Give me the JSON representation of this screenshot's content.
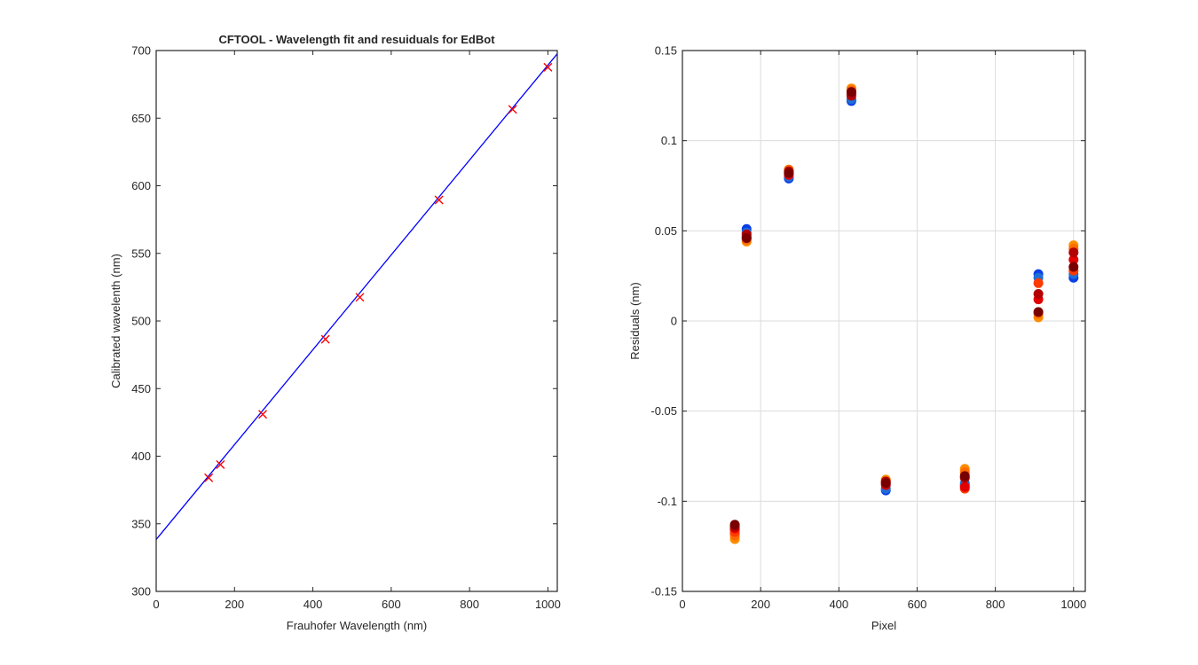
{
  "figure": {
    "background": "#ffffff"
  },
  "chart_data": [
    {
      "type": "line",
      "title": "CFTOOL - Wavelength fit and resuiduals for EdBot",
      "xlabel": "Frauhofer Wavelength (nm)",
      "ylabel": "Calibrated wavelenth (nm)",
      "xlim": [
        0,
        1024
      ],
      "ylim": [
        300,
        700
      ],
      "xticks": [
        0,
        200,
        400,
        600,
        800,
        1000
      ],
      "yticks": [
        300,
        350,
        400,
        450,
        500,
        550,
        600,
        650,
        700
      ],
      "grid": false,
      "legend": "none",
      "series": [
        {
          "type": "line",
          "color": "#0000ff",
          "x": [
            0,
            1024
          ],
          "y": [
            338.4,
            697.6
          ]
        },
        {
          "type": "scatter",
          "marker": "x",
          "color": "#ff0000",
          "x": [
            134,
            164,
            272,
            432,
            520,
            722,
            910,
            1000
          ],
          "y": [
            384,
            393.8,
            431,
            486.5,
            517.5,
            589.5,
            656.5,
            687.6
          ]
        }
      ]
    },
    {
      "type": "scatter",
      "title": "",
      "xlabel": "Pixel",
      "ylabel": "Residuals  (nm)",
      "xlim": [
        0,
        1030
      ],
      "ylim": [
        -0.15,
        0.15
      ],
      "xticks": [
        0,
        200,
        400,
        600,
        800,
        1000
      ],
      "yticks": [
        -0.15,
        -0.1,
        -0.05,
        0,
        0.05,
        0.1,
        0.15
      ],
      "ytick_labels": [
        "-0.15",
        "-0.1",
        "-0.05",
        "0",
        "0.05",
        "0.1",
        "0.15"
      ],
      "grid": true,
      "legend": "none",
      "marker": "filled-circle",
      "colors": [
        "#0a3ee8",
        "#1f6fd6",
        "#ff8c00",
        "#ff6a00",
        "#ff3a00",
        "#e30000",
        "#b30000",
        "#7a0000"
      ],
      "groups": [
        {
          "x": 134,
          "y": [
            -0.116,
            -0.118,
            -0.121,
            -0.119,
            -0.117,
            -0.115,
            -0.114,
            -0.113
          ]
        },
        {
          "x": 164,
          "y": [
            0.051,
            0.049,
            0.044,
            0.045,
            0.046,
            0.047,
            0.048,
            0.046
          ]
        },
        {
          "x": 272,
          "y": [
            0.079,
            0.08,
            0.083,
            0.084,
            0.082,
            0.081,
            0.083,
            0.082
          ]
        },
        {
          "x": 432,
          "y": [
            0.122,
            0.123,
            0.129,
            0.128,
            0.127,
            0.126,
            0.125,
            0.127
          ]
        },
        {
          "x": 520,
          "y": [
            -0.094,
            -0.093,
            -0.088,
            -0.089,
            -0.09,
            -0.091,
            -0.089,
            -0.09
          ]
        },
        {
          "x": 722,
          "y": [
            -0.091,
            -0.09,
            -0.082,
            -0.084,
            -0.093,
            -0.092,
            -0.087,
            -0.086
          ]
        },
        {
          "x": 910,
          "y": [
            0.026,
            0.024,
            0.002,
            0.004,
            0.021,
            0.012,
            0.015,
            0.005
          ]
        },
        {
          "x": 1000,
          "y": [
            0.024,
            0.026,
            0.042,
            0.04,
            0.028,
            0.034,
            0.038,
            0.03
          ]
        }
      ]
    }
  ]
}
